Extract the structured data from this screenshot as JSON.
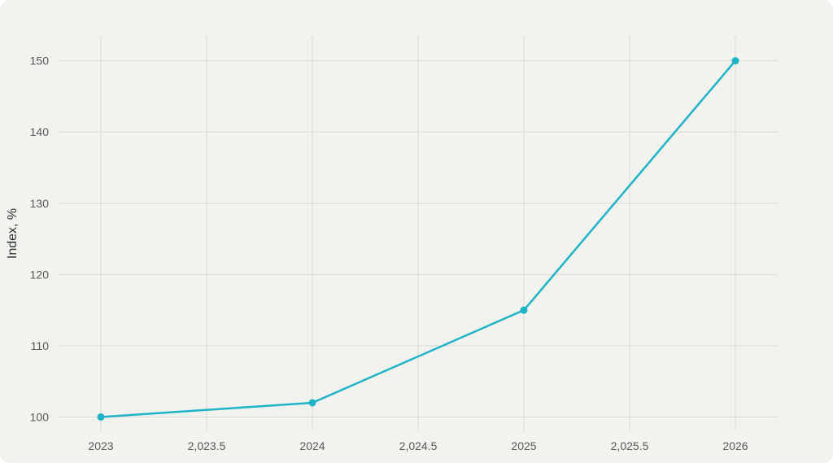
{
  "chart_data": {
    "type": "line",
    "title": "",
    "xlabel": "",
    "ylabel": "Index, %",
    "x": [
      2023,
      2024,
      2025,
      2026
    ],
    "series": [
      {
        "values": [
          100,
          102,
          115,
          150
        ]
      }
    ],
    "xlim": [
      2022.8,
      2026.2
    ],
    "ylim": [
      98,
      153.5
    ],
    "xticks": [
      2023,
      2023.5,
      2024,
      2024.5,
      2025,
      2025.5,
      2026
    ],
    "xtick_labels": [
      "2023",
      "2,023.5",
      "2024",
      "2,024.5",
      "2025",
      "2,025.5",
      "2026"
    ],
    "yticks": [
      100,
      110,
      120,
      130,
      140,
      150
    ],
    "ytick_labels": [
      "100",
      "110",
      "120",
      "130",
      "140",
      "150"
    ],
    "grid": true,
    "legend": "none",
    "colors": {
      "background": "#f2f3ee",
      "grid": "#d9dbd6",
      "line": "#1fb3c8"
    }
  }
}
